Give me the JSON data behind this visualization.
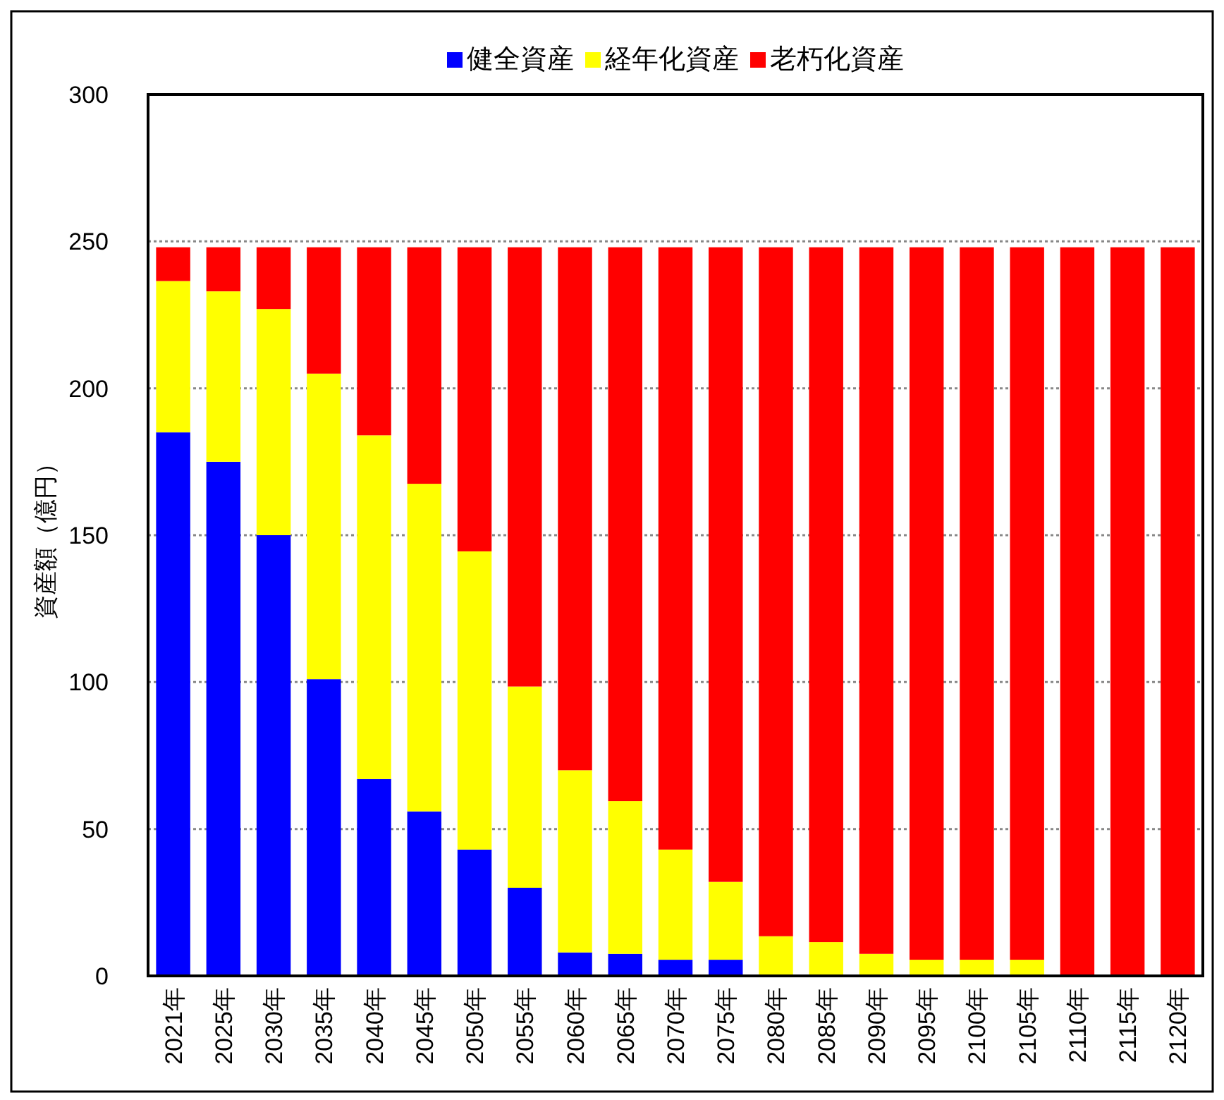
{
  "chart_data": {
    "type": "bar",
    "stacked": true,
    "ylabel": "資産額（億円）",
    "categories": [
      "2021年",
      "2025年",
      "2030年",
      "2035年",
      "2040年",
      "2045年",
      "2050年",
      "2055年",
      "2060年",
      "2065年",
      "2070年",
      "2075年",
      "2080年",
      "2085年",
      "2090年",
      "2095年",
      "2100年",
      "2105年",
      "2110年",
      "2115年",
      "2120年"
    ],
    "series": [
      {
        "name": "健全資産",
        "color": "#0000ff",
        "values": [
          185,
          175,
          150,
          101,
          67,
          56,
          43,
          30,
          8,
          7.5,
          5.5,
          5.5,
          0,
          0,
          0,
          0,
          0,
          0,
          0,
          0,
          0
        ]
      },
      {
        "name": "経年化資産",
        "color": "#ffff00",
        "values": [
          51.5,
          58,
          77,
          104,
          117,
          111.5,
          101.5,
          68.5,
          62,
          52,
          37.5,
          26.5,
          13.5,
          11.5,
          7.5,
          5.5,
          5.5,
          5.5,
          0,
          0,
          0
        ]
      },
      {
        "name": "老朽化資産",
        "color": "#ff0000",
        "values": [
          11.5,
          15,
          21,
          43,
          64,
          80.5,
          103.5,
          149.5,
          178,
          188.5,
          205,
          216,
          234.5,
          236.5,
          240.5,
          242.5,
          242.5,
          242.5,
          248,
          248,
          248
        ]
      }
    ],
    "ylim": [
      0,
      300
    ],
    "yticks": [
      0,
      50,
      100,
      150,
      200,
      250,
      300
    ],
    "grid": "y",
    "legend": "top"
  }
}
